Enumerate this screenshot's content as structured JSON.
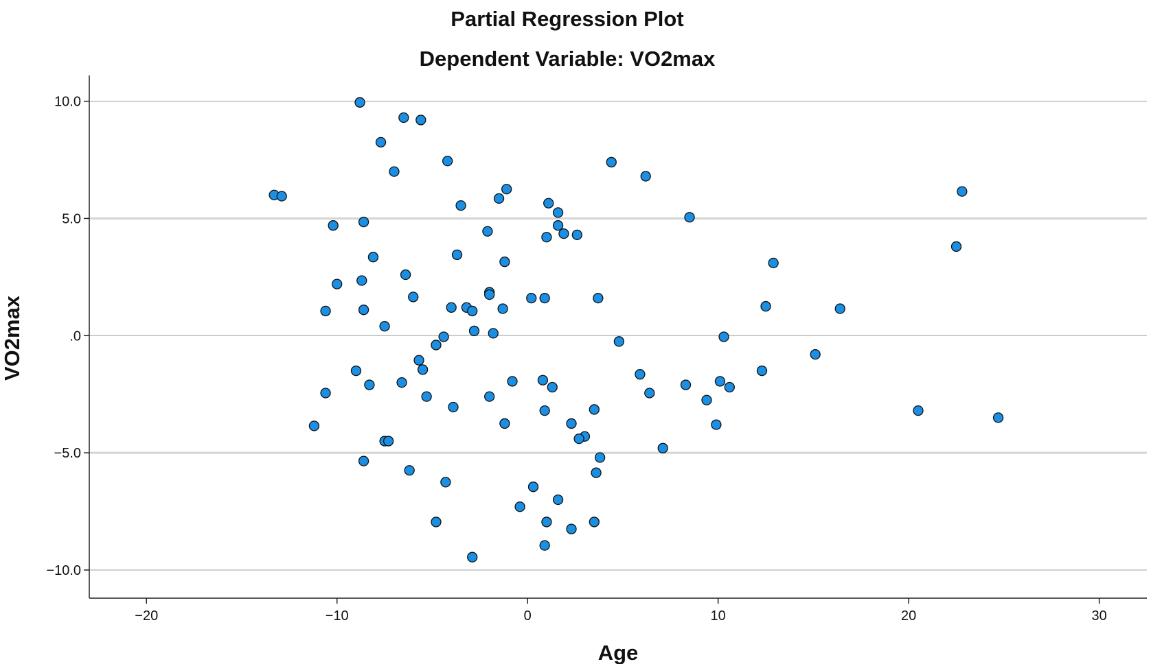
{
  "chart_data": {
    "type": "scatter",
    "title": "Partial Regression Plot",
    "subtitle": "Dependent Variable: VO2max",
    "xlabel": "Age",
    "ylabel": "VO2max",
    "xlim": [
      -23,
      32.5
    ],
    "ylim": [
      -11.2,
      11.1
    ],
    "xticks": [
      {
        "value": -20,
        "label": "−20"
      },
      {
        "value": -10,
        "label": "−10"
      },
      {
        "value": 0,
        "label": "0"
      },
      {
        "value": 10,
        "label": "10"
      },
      {
        "value": 20,
        "label": "20"
      },
      {
        "value": 30,
        "label": "30"
      }
    ],
    "yticks": [
      {
        "value": 10,
        "label": "10.0"
      },
      {
        "value": 5,
        "label": "5.0"
      },
      {
        "value": 0,
        "label": ".0"
      },
      {
        "value": -5,
        "label": "−5.0"
      },
      {
        "value": -10,
        "label": "−10.0"
      }
    ],
    "grid": "horizontal",
    "marker_color": "#1a8fe3",
    "marker_edge_color": "#111111",
    "points": [
      {
        "x": -8.8,
        "y": 9.95
      },
      {
        "x": -6.5,
        "y": 9.3
      },
      {
        "x": -5.6,
        "y": 9.2
      },
      {
        "x": -7.7,
        "y": 8.25
      },
      {
        "x": -4.2,
        "y": 7.45
      },
      {
        "x": -7.0,
        "y": 7.0
      },
      {
        "x": 4.4,
        "y": 7.4
      },
      {
        "x": 6.2,
        "y": 6.8
      },
      {
        "x": -13.3,
        "y": 6.0
      },
      {
        "x": -12.9,
        "y": 5.95
      },
      {
        "x": -1.1,
        "y": 6.25
      },
      {
        "x": -1.5,
        "y": 5.85
      },
      {
        "x": 22.8,
        "y": 6.15
      },
      {
        "x": 1.1,
        "y": 5.65
      },
      {
        "x": -3.5,
        "y": 5.55
      },
      {
        "x": 1.6,
        "y": 5.25
      },
      {
        "x": 8.5,
        "y": 5.05
      },
      {
        "x": -8.6,
        "y": 4.85
      },
      {
        "x": -10.2,
        "y": 4.7
      },
      {
        "x": 1.6,
        "y": 4.7
      },
      {
        "x": -2.1,
        "y": 4.45
      },
      {
        "x": 1.9,
        "y": 4.35
      },
      {
        "x": 2.6,
        "y": 4.3
      },
      {
        "x": 1.0,
        "y": 4.2
      },
      {
        "x": 22.5,
        "y": 3.8
      },
      {
        "x": -3.7,
        "y": 3.45
      },
      {
        "x": -8.1,
        "y": 3.35
      },
      {
        "x": -1.2,
        "y": 3.15
      },
      {
        "x": 12.9,
        "y": 3.1
      },
      {
        "x": -6.4,
        "y": 2.6
      },
      {
        "x": -8.7,
        "y": 2.35
      },
      {
        "x": -10.0,
        "y": 2.2
      },
      {
        "x": -2.0,
        "y": 1.85
      },
      {
        "x": -2.0,
        "y": 1.75
      },
      {
        "x": -6.0,
        "y": 1.65
      },
      {
        "x": 3.7,
        "y": 1.6
      },
      {
        "x": 0.2,
        "y": 1.6
      },
      {
        "x": 0.9,
        "y": 1.6
      },
      {
        "x": -4.0,
        "y": 1.2
      },
      {
        "x": -3.2,
        "y": 1.2
      },
      {
        "x": 12.5,
        "y": 1.25
      },
      {
        "x": 16.4,
        "y": 1.15
      },
      {
        "x": -1.3,
        "y": 1.15
      },
      {
        "x": -2.9,
        "y": 1.05
      },
      {
        "x": -10.6,
        "y": 1.05
      },
      {
        "x": -8.6,
        "y": 1.1
      },
      {
        "x": -7.5,
        "y": 0.4
      },
      {
        "x": -2.8,
        "y": 0.2
      },
      {
        "x": -1.8,
        "y": 0.1
      },
      {
        "x": 10.3,
        "y": -0.05
      },
      {
        "x": -4.4,
        "y": -0.05
      },
      {
        "x": -4.8,
        "y": -0.4
      },
      {
        "x": 4.8,
        "y": -0.25
      },
      {
        "x": 15.1,
        "y": -0.8
      },
      {
        "x": -5.7,
        "y": -1.05
      },
      {
        "x": -5.5,
        "y": -1.45
      },
      {
        "x": -9.0,
        "y": -1.5
      },
      {
        "x": 12.3,
        "y": -1.5
      },
      {
        "x": 5.9,
        "y": -1.65
      },
      {
        "x": -0.8,
        "y": -1.95
      },
      {
        "x": 0.8,
        "y": -1.9
      },
      {
        "x": 10.1,
        "y": -1.95
      },
      {
        "x": -6.6,
        "y": -2.0
      },
      {
        "x": -8.3,
        "y": -2.1
      },
      {
        "x": 8.3,
        "y": -2.1
      },
      {
        "x": 10.6,
        "y": -2.2
      },
      {
        "x": 1.3,
        "y": -2.2
      },
      {
        "x": -10.6,
        "y": -2.45
      },
      {
        "x": 6.4,
        "y": -2.45
      },
      {
        "x": -5.3,
        "y": -2.6
      },
      {
        "x": -2.0,
        "y": -2.6
      },
      {
        "x": 9.4,
        "y": -2.75
      },
      {
        "x": -3.9,
        "y": -3.05
      },
      {
        "x": 3.5,
        "y": -3.15
      },
      {
        "x": 0.9,
        "y": -3.2
      },
      {
        "x": 20.5,
        "y": -3.2
      },
      {
        "x": 24.7,
        "y": -3.5
      },
      {
        "x": 2.3,
        "y": -3.75
      },
      {
        "x": -1.2,
        "y": -3.75
      },
      {
        "x": -11.2,
        "y": -3.85
      },
      {
        "x": 9.9,
        "y": -3.8
      },
      {
        "x": 3.0,
        "y": -4.3
      },
      {
        "x": 2.7,
        "y": -4.4
      },
      {
        "x": -7.5,
        "y": -4.5
      },
      {
        "x": -7.3,
        "y": -4.5
      },
      {
        "x": 7.1,
        "y": -4.8
      },
      {
        "x": 3.8,
        "y": -5.2
      },
      {
        "x": -8.6,
        "y": -5.35
      },
      {
        "x": -6.2,
        "y": -5.75
      },
      {
        "x": 3.6,
        "y": -5.85
      },
      {
        "x": -4.3,
        "y": -6.25
      },
      {
        "x": 0.3,
        "y": -6.45
      },
      {
        "x": 1.6,
        "y": -7.0
      },
      {
        "x": -0.4,
        "y": -7.3
      },
      {
        "x": -4.8,
        "y": -7.95
      },
      {
        "x": 1.0,
        "y": -7.95
      },
      {
        "x": 3.5,
        "y": -7.95
      },
      {
        "x": 2.3,
        "y": -8.25
      },
      {
        "x": 0.9,
        "y": -8.95
      },
      {
        "x": -2.9,
        "y": -9.45
      }
    ]
  }
}
